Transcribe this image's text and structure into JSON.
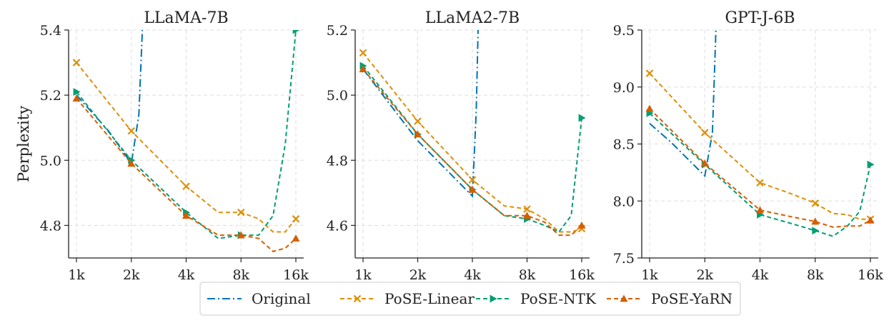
{
  "chart_data": [
    {
      "type": "line",
      "title": "LLaMA-7B",
      "ylabel": "Perplexity",
      "xscale": "log2",
      "x_ticks": [
        "1k",
        "2k",
        "4k",
        "8k",
        "16k"
      ],
      "y_ticks": [
        "4.8",
        "5.0",
        "5.2",
        "5.4"
      ],
      "ylim": [
        4.7,
        5.4
      ],
      "grid": true,
      "series": [
        {
          "name": "Original",
          "x": [
            1,
            1.5,
            2,
            2.2,
            2.3
          ],
          "y": [
            5.2,
            5.09,
            4.99,
            5.14,
            5.4
          ]
        },
        {
          "name": "PoSE-Linear",
          "x": [
            1,
            2,
            4,
            6,
            8,
            10,
            12,
            14,
            16
          ],
          "y": [
            5.3,
            5.09,
            4.92,
            4.84,
            4.84,
            4.82,
            4.78,
            4.78,
            4.82
          ]
        },
        {
          "name": "PoSE-NTK",
          "x": [
            1,
            2,
            4,
            6,
            8,
            10,
            12,
            14,
            16
          ],
          "y": [
            5.21,
            5.0,
            4.84,
            4.76,
            4.77,
            4.77,
            4.83,
            5.05,
            5.4
          ]
        },
        {
          "name": "PoSE-YaRN",
          "x": [
            1,
            2,
            4,
            6,
            8,
            10,
            12,
            14,
            16
          ],
          "y": [
            5.19,
            4.99,
            4.83,
            4.77,
            4.77,
            4.76,
            4.72,
            4.73,
            4.76
          ]
        }
      ]
    },
    {
      "type": "line",
      "title": "LLaMA2-7B",
      "ylabel": "",
      "xscale": "log2",
      "x_ticks": [
        "1k",
        "2k",
        "4k",
        "8k",
        "16k"
      ],
      "y_ticks": [
        "4.6",
        "4.8",
        "5.0",
        "5.2"
      ],
      "ylim": [
        4.5,
        5.2
      ],
      "grid": true,
      "series": [
        {
          "name": "Original",
          "x": [
            1,
            2,
            4,
            4.2,
            4.3
          ],
          "y": [
            5.08,
            4.86,
            4.69,
            4.95,
            5.2
          ]
        },
        {
          "name": "PoSE-Linear",
          "x": [
            1,
            2,
            4,
            6,
            8,
            10,
            12,
            14,
            16
          ],
          "y": [
            5.13,
            4.92,
            4.74,
            4.66,
            4.65,
            4.62,
            4.58,
            4.58,
            4.59
          ]
        },
        {
          "name": "PoSE-NTK",
          "x": [
            1,
            2,
            4,
            6,
            8,
            10,
            12,
            14,
            16
          ],
          "y": [
            5.09,
            4.88,
            4.71,
            4.63,
            4.62,
            4.6,
            4.58,
            4.63,
            4.93
          ]
        },
        {
          "name": "PoSE-YaRN",
          "x": [
            1,
            2,
            4,
            6,
            8,
            10,
            12,
            14,
            16
          ],
          "y": [
            5.08,
            4.88,
            4.71,
            4.63,
            4.63,
            4.61,
            4.57,
            4.57,
            4.6
          ]
        }
      ]
    },
    {
      "type": "line",
      "title": "GPT-J-6B",
      "ylabel": "",
      "xscale": "log2",
      "x_ticks": [
        "1k",
        "2k",
        "4k",
        "8k",
        "16k"
      ],
      "y_ticks": [
        "7.5",
        "8.0",
        "8.5",
        "9.0",
        "9.5"
      ],
      "ylim": [
        7.5,
        9.5
      ],
      "grid": true,
      "series": [
        {
          "name": "Original",
          "x": [
            1,
            1.3,
            2,
            2.2,
            2.3
          ],
          "y": [
            8.68,
            8.52,
            8.22,
            8.6,
            9.5
          ]
        },
        {
          "name": "PoSE-Linear",
          "x": [
            1,
            2,
            4,
            6,
            8,
            10,
            12,
            14,
            16
          ],
          "y": [
            9.12,
            8.6,
            8.16,
            8.06,
            7.98,
            7.89,
            7.88,
            7.84,
            7.84
          ]
        },
        {
          "name": "PoSE-NTK",
          "x": [
            1,
            2,
            4,
            6,
            8,
            10,
            12,
            14,
            16
          ],
          "y": [
            8.77,
            8.32,
            7.88,
            7.8,
            7.74,
            7.69,
            7.78,
            7.91,
            8.32
          ]
        },
        {
          "name": "PoSE-YaRN",
          "x": [
            1,
            2,
            4,
            6,
            8,
            10,
            12,
            14,
            16
          ],
          "y": [
            8.81,
            8.33,
            7.92,
            7.86,
            7.82,
            7.77,
            7.78,
            7.78,
            7.83
          ]
        }
      ]
    }
  ],
  "legend": {
    "placement": "bottom-center",
    "entries": [
      "Original",
      "PoSE-Linear",
      "PoSE-NTK",
      "PoSE-YaRN"
    ]
  },
  "colors": {
    "Original": "#0173b2",
    "PoSE-Linear": "#de8f05",
    "PoSE-NTK": "#029e73",
    "PoSE-YaRN": "#d55e00",
    "grid": "#dddddd",
    "axis": "#222222"
  },
  "series_styles": {
    "Original": {
      "dash": "dash-dot",
      "marker": "none"
    },
    "PoSE-Linear": {
      "dash": "dashed",
      "marker": "x"
    },
    "PoSE-NTK": {
      "dash": "dashed",
      "marker": "right-triangle"
    },
    "PoSE-YaRN": {
      "dash": "dashed",
      "marker": "triangle"
    }
  }
}
